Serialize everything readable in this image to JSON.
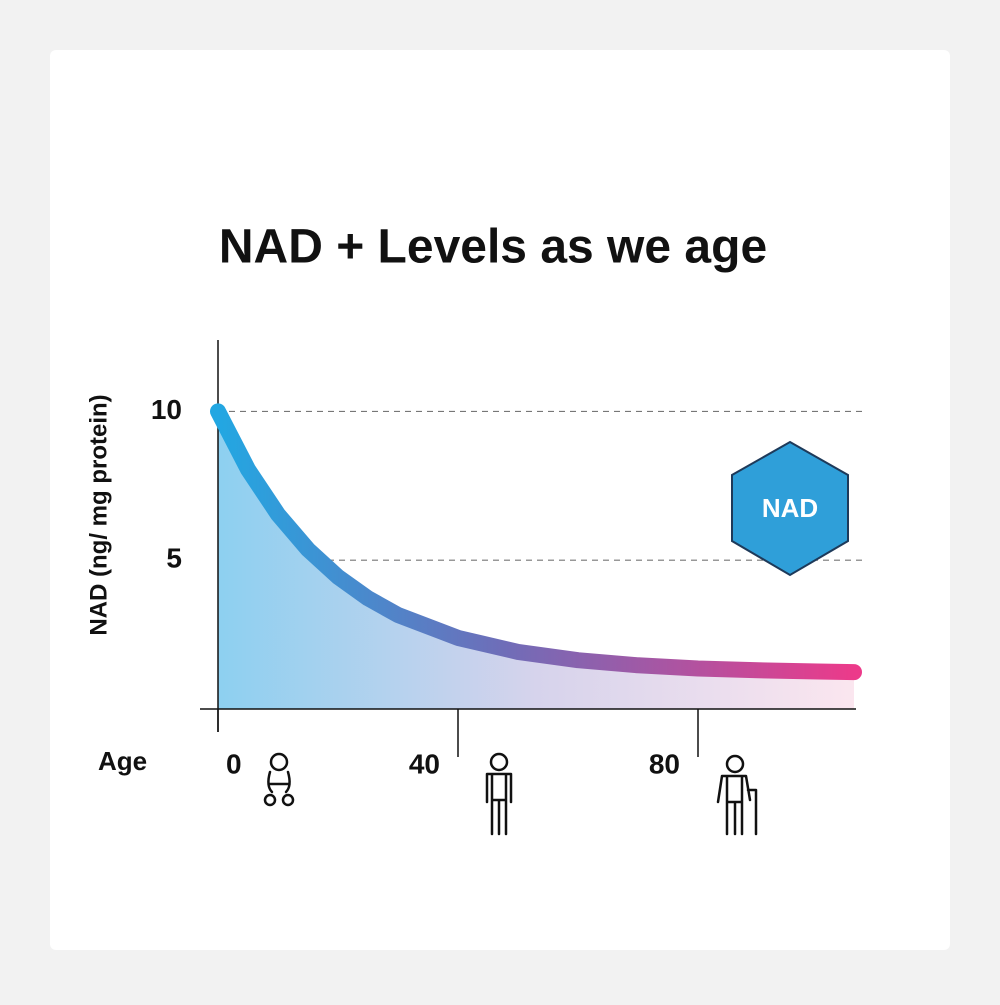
{
  "chart_data": {
    "type": "line",
    "title": "NAD + Levels as we age",
    "y_label": "NAD (ng/ mg protein)",
    "x_label": "Age",
    "badge": "NAD",
    "x": [
      0,
      5,
      10,
      15,
      20,
      25,
      30,
      40,
      50,
      60,
      70,
      80,
      90,
      100,
      106
    ],
    "series": [
      {
        "values": [
          10,
          8.05,
          6.54,
          5.36,
          4.44,
          3.72,
          3.16,
          2.39,
          1.92,
          1.64,
          1.47,
          1.36,
          1.3,
          1.26,
          1.24
        ]
      }
    ],
    "xlim": [
      0,
      106
    ],
    "xticks": [
      0,
      40,
      80
    ],
    "ylim": [
      0,
      12.4
    ],
    "yticks": [
      5,
      10
    ],
    "grid": true,
    "area": true
  }
}
